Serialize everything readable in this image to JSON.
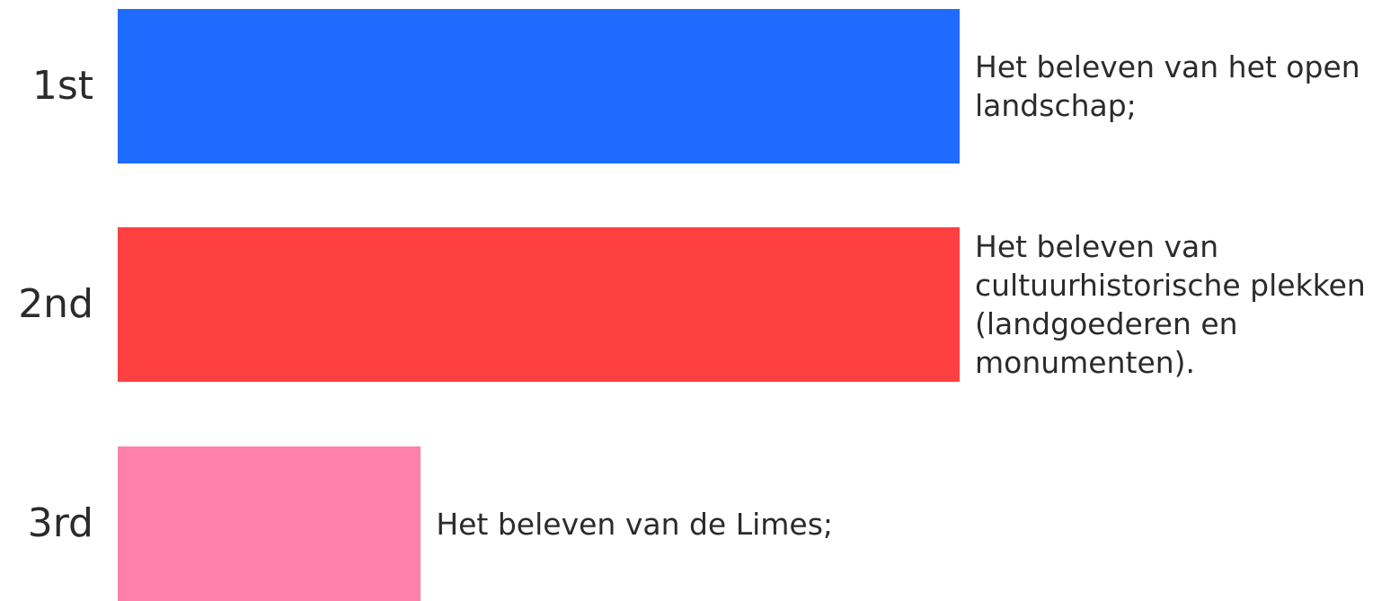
{
  "chart_data": {
    "type": "bar",
    "orientation": "horizontal",
    "categories": [
      "1st",
      "2nd",
      "3rd"
    ],
    "values": [
      100,
      100,
      36
    ],
    "labels": [
      "Het beleven van het open landschap;",
      "Het beleven van cultuurhistorische plekken (landgoederen en monumenten).",
      "Het beleven van de Limes;"
    ],
    "colors": [
      "#1f6bff",
      "#ff4040",
      "#ff80aa"
    ],
    "xlim": [
      0,
      100
    ],
    "grid": false,
    "legend": "none"
  }
}
